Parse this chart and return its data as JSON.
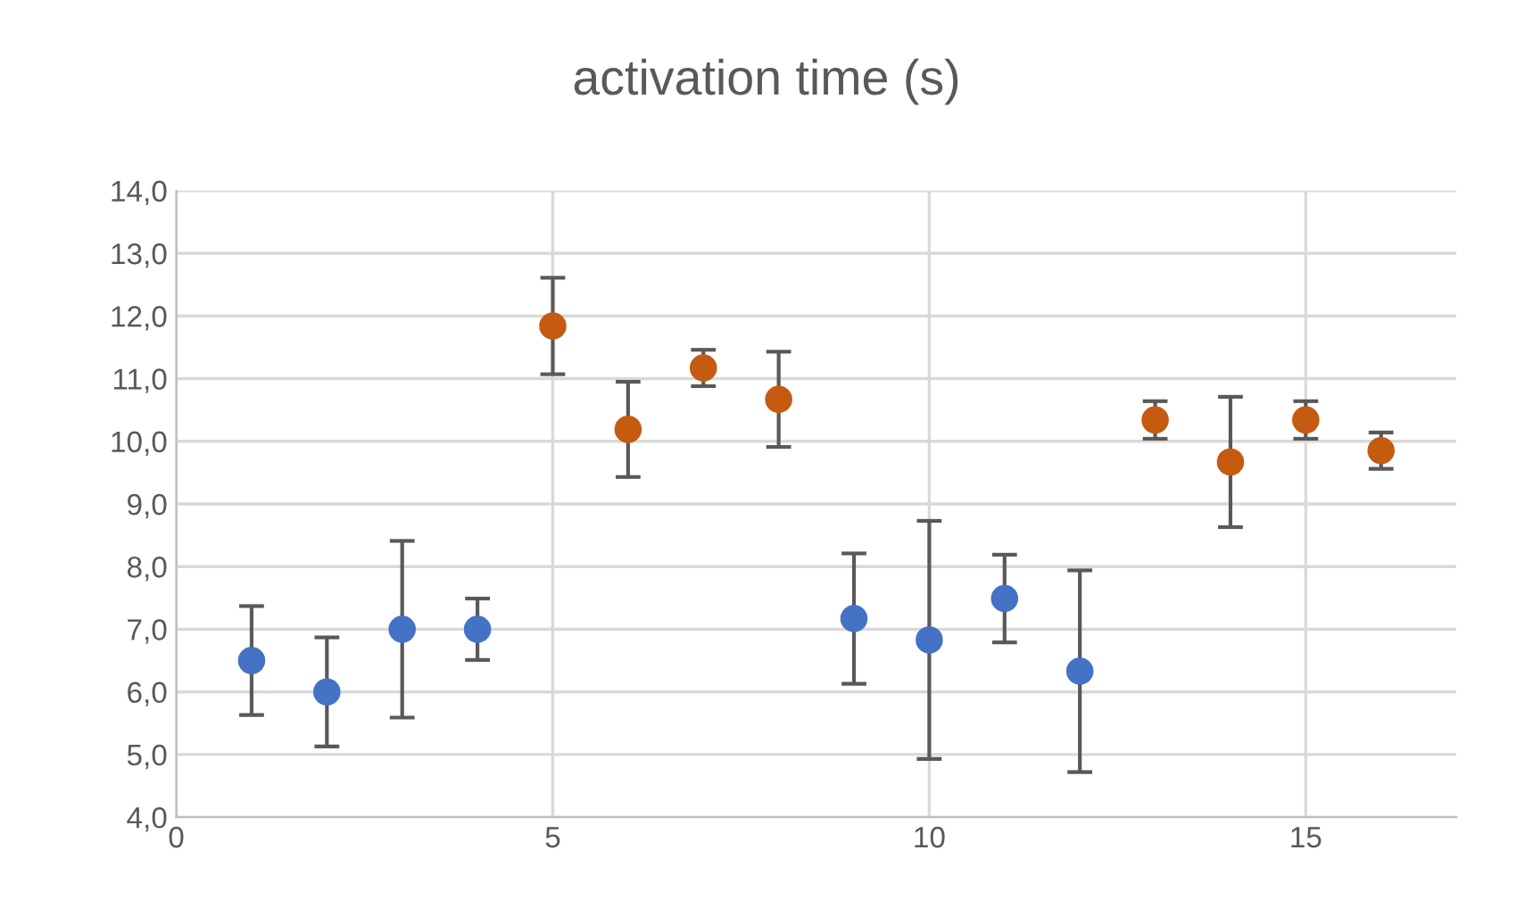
{
  "chart_data": {
    "type": "scatter",
    "title": "activation time (s)",
    "series": [
      {
        "color": "#4472c4",
        "x": [
          1,
          2,
          3,
          4,
          9,
          10,
          11,
          12
        ],
        "values": [
          6.5,
          6.0,
          7.0,
          7.0,
          7.17,
          6.83,
          7.49,
          6.33
        ],
        "errors": [
          0.87,
          0.87,
          1.41,
          0.49,
          1.04,
          1.9,
          0.7,
          1.61
        ]
      },
      {
        "color": "#c55a11",
        "x": [
          5,
          6,
          7,
          8,
          13,
          14,
          15,
          16
        ],
        "values": [
          11.84,
          10.19,
          11.17,
          10.67,
          10.34,
          9.67,
          10.34,
          9.85
        ],
        "errors": [
          0.77,
          0.76,
          0.29,
          0.76,
          0.3,
          1.04,
          0.3,
          0.29
        ]
      }
    ],
    "xlim": [
      0,
      17
    ],
    "xticks": [
      0,
      5,
      10,
      15
    ],
    "ylim": [
      4,
      14
    ],
    "yticks": [
      {
        "value": 4,
        "label": "4,0"
      },
      {
        "value": 5,
        "label": "5,0"
      },
      {
        "value": 6,
        "label": "6,0"
      },
      {
        "value": 7,
        "label": "7,0"
      },
      {
        "value": 8,
        "label": "8,0"
      },
      {
        "value": 9,
        "label": "9,0"
      },
      {
        "value": 10,
        "label": "10,0"
      },
      {
        "value": 11,
        "label": "11,0"
      },
      {
        "value": 12,
        "label": "12,0"
      },
      {
        "value": 13,
        "label": "13,0"
      },
      {
        "value": 14,
        "label": "14,0"
      }
    ],
    "grid": true,
    "marker": "circle"
  }
}
